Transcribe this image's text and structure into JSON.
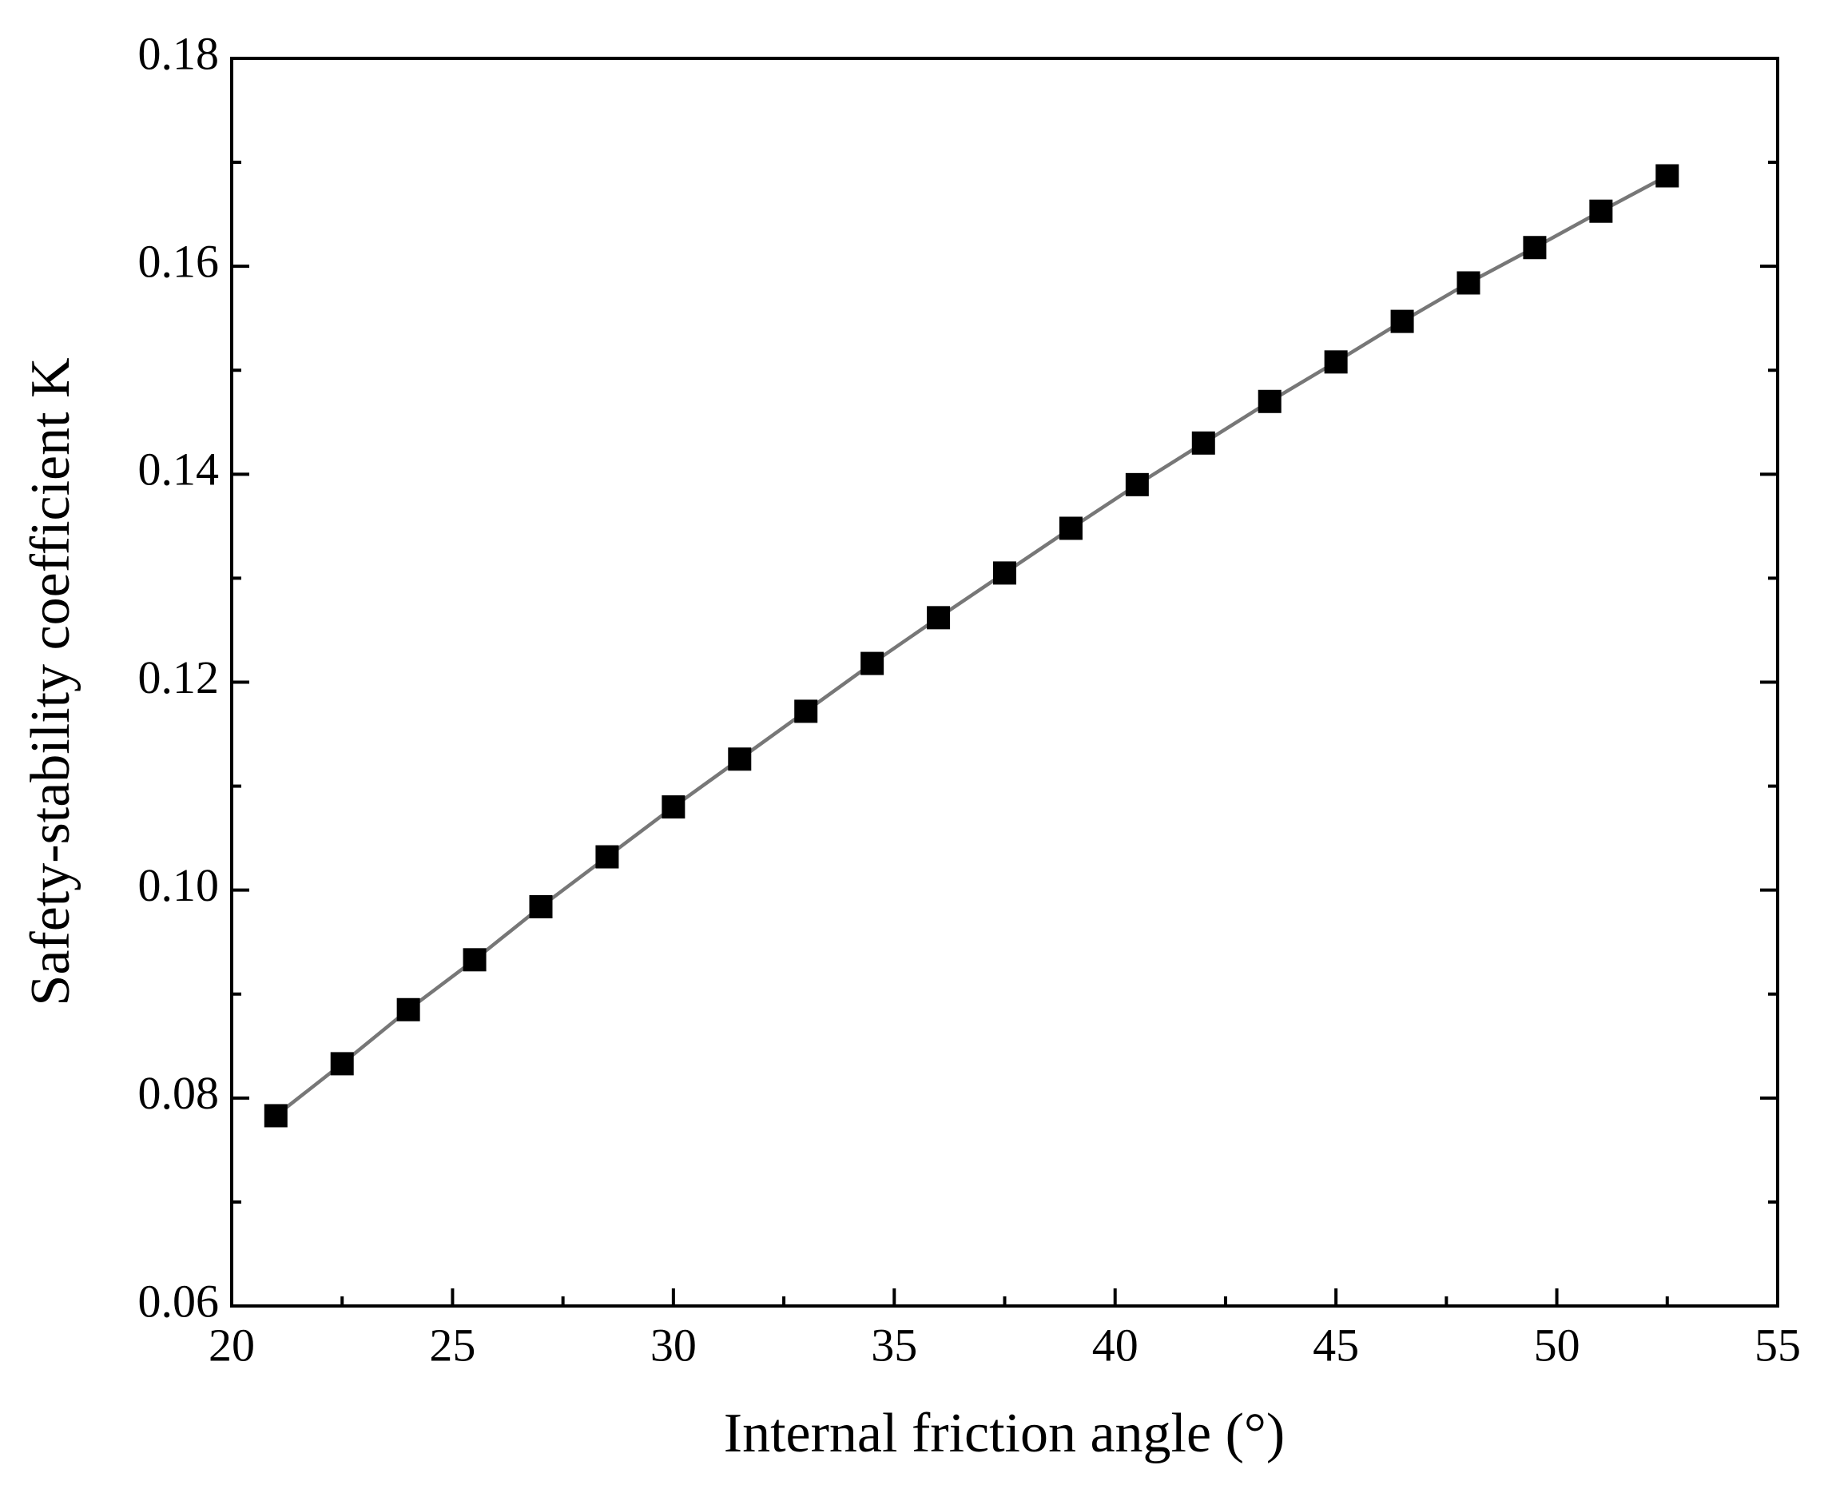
{
  "chart_data": {
    "type": "line",
    "xlabel": "Internal friction angle (°)",
    "ylabel": "Safety-stability coefficient K",
    "x": [
      21,
      22.5,
      24,
      25.5,
      27,
      28.5,
      30,
      31.5,
      33,
      34.5,
      36,
      37.5,
      39,
      40.5,
      42,
      43.5,
      45,
      46.5,
      48,
      49.5,
      51,
      52.5
    ],
    "values": [
      0.0783,
      0.0833,
      0.0885,
      0.0933,
      0.0984,
      0.1032,
      0.108,
      0.1126,
      0.1172,
      0.1218,
      0.1262,
      0.1305,
      0.1348,
      0.139,
      0.143,
      0.147,
      0.1508,
      0.1547,
      0.1584,
      0.1618,
      0.1653,
      0.1687
    ],
    "color": "#777777",
    "marker_color": "#000000",
    "xlim": [
      20,
      55
    ],
    "xticks": [
      20,
      25,
      30,
      35,
      40,
      45,
      50,
      55
    ],
    "xminorticks": [
      22.5,
      27.5,
      32.5,
      37.5,
      42.5,
      47.5,
      52.5
    ],
    "ylim": [
      0.06,
      0.18
    ],
    "yticks": [
      0.06,
      0.08,
      {
        "value": 0.1,
        "label": "0.10"
      },
      0.12,
      0.14,
      0.16,
      0.18
    ],
    "yminorticks": [
      0.07,
      0.09,
      0.11,
      0.13,
      0.15,
      0.17
    ]
  }
}
